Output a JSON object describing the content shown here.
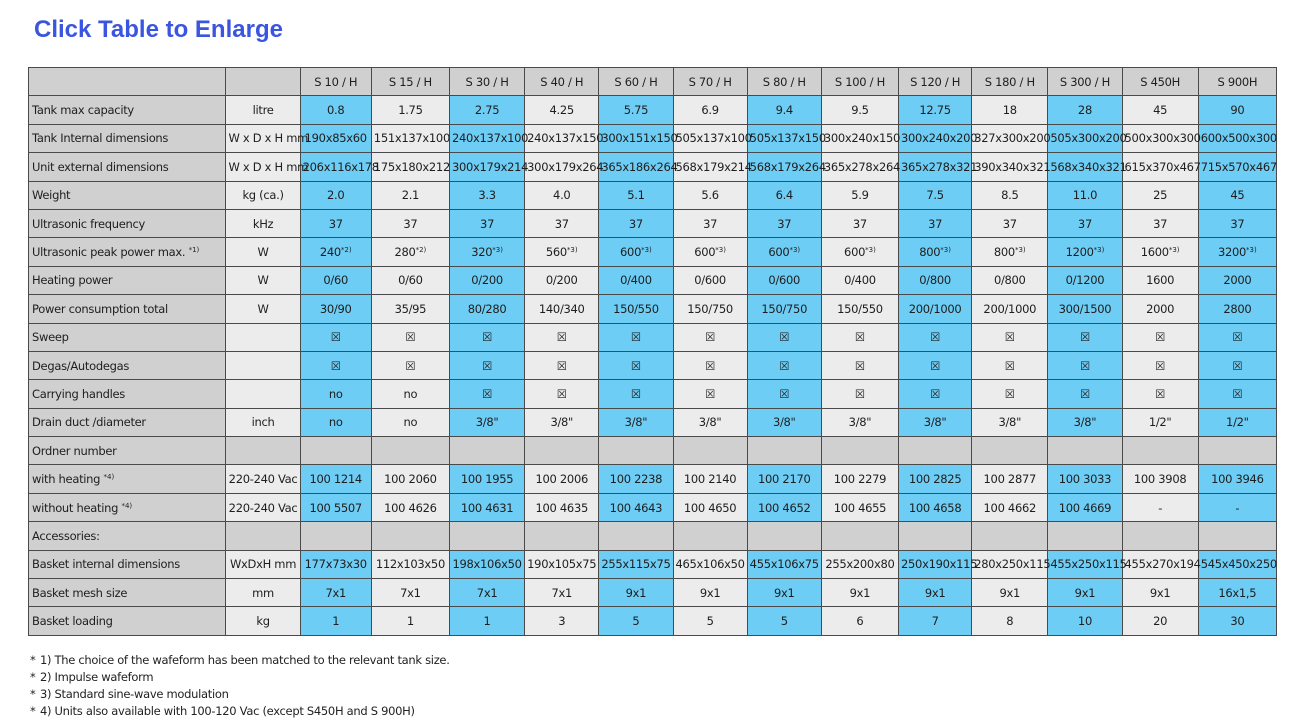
{
  "page_title": "Click Table to Enlarge",
  "columns": [
    "S 10 / H",
    "S 15 / H",
    "S 30 / H",
    "S 40 / H",
    "S 60 / H",
    "S 70 / H",
    "S 80 / H",
    "S 100 / H",
    "S 120 / H",
    "S 180 / H",
    "S 300 / H",
    "S 450H",
    "S 900H"
  ],
  "column_colors": [
    "b",
    "w",
    "b",
    "w",
    "b",
    "w",
    "b",
    "w",
    "b",
    "w",
    "b",
    "w",
    "b"
  ],
  "colors": {
    "blue_cell": "#6ecdf5",
    "grey_cell": "#ececec",
    "header_cell": "#d0d0d0",
    "title": "#3a55e0"
  },
  "rows": [
    {
      "label": "Tank max capacity",
      "unit": "litre",
      "values": [
        "0.8",
        "1.75",
        "2.75",
        "4.25",
        "5.75",
        "6.9",
        "9.4",
        "9.5",
        "12.75",
        "18",
        "28",
        "45",
        "90"
      ]
    },
    {
      "label": "Tank Internal dimensions",
      "unit": "W x D x H mm",
      "values": [
        "190x85x60",
        "151x137x100",
        "240x137x100",
        "240x137x150",
        "300x151x150",
        "505x137x100",
        "505x137x150",
        "300x240x150",
        "300x240x200",
        "327x300x200",
        "505x300x200",
        "500x300x300",
        "600x500x300"
      ]
    },
    {
      "label": "Unit external dimensions",
      "unit": "W x D x H mm",
      "values": [
        "206x116x178",
        "175x180x212",
        "300x179x214",
        "300x179x264",
        "365x186x264",
        "568x179x214",
        "568x179x264",
        "365x278x264",
        "365x278x321",
        "390x340x321",
        "568x340x321",
        "615x370x467",
        "715x570x467"
      ]
    },
    {
      "label": "Weight",
      "unit": "kg (ca.)",
      "values": [
        "2.0",
        "2.1",
        "3.3",
        "4.0",
        "5.1",
        "5.6",
        "6.4",
        "5.9",
        "7.5",
        "8.5",
        "11.0",
        "25",
        "45"
      ]
    },
    {
      "label": "Ultrasonic frequency",
      "unit": "kHz",
      "values": [
        "37",
        "37",
        "37",
        "37",
        "37",
        "37",
        "37",
        "37",
        "37",
        "37",
        "37",
        "37",
        "37"
      ]
    },
    {
      "label": "Ultrasonic peak power max.",
      "label_sup": "*1)",
      "unit": "W",
      "values": [
        "240",
        "280",
        "320",
        "560",
        "600",
        "600",
        "600",
        "600",
        "800",
        "800",
        "1200",
        "1600",
        "3200"
      ],
      "value_sups": [
        "*2)",
        "*2)",
        "*3)",
        "*3)",
        "*3)",
        "*3)",
        "*3)",
        "*3)",
        "*3)",
        "*3)",
        "*3)",
        "*3)",
        "*3)"
      ]
    },
    {
      "label": "Heating power",
      "unit": "W",
      "values": [
        "0/60",
        "0/60",
        "0/200",
        "0/200",
        "0/400",
        "0/600",
        "0/600",
        "0/400",
        "0/800",
        "0/800",
        "0/1200",
        "1600",
        "2000"
      ]
    },
    {
      "label": "Power consumption total",
      "unit": "W",
      "values": [
        "30/90",
        "35/95",
        "80/280",
        "140/340",
        "150/550",
        "150/750",
        "150/750",
        "150/550",
        "200/1000",
        "200/1000",
        "300/1500",
        "2000",
        "2800"
      ]
    },
    {
      "label": "Sweep",
      "unit": "",
      "values": [
        "☒",
        "☒",
        "☒",
        "☒",
        "☒",
        "☒",
        "☒",
        "☒",
        "☒",
        "☒",
        "☒",
        "☒",
        "☒"
      ]
    },
    {
      "label": "Degas/Autodegas",
      "unit": "",
      "values": [
        "☒",
        "☒",
        "☒",
        "☒",
        "☒",
        "☒",
        "☒",
        "☒",
        "☒",
        "☒",
        "☒",
        "☒",
        "☒"
      ]
    },
    {
      "label": "Carrying handles",
      "unit": "",
      "values": [
        "no",
        "no",
        "☒",
        "☒",
        "☒",
        "☒",
        "☒",
        "☒",
        "☒",
        "☒",
        "☒",
        "☒",
        "☒"
      ]
    },
    {
      "label": "Drain duct /diameter",
      "unit": "inch",
      "values": [
        "no",
        "no",
        "3/8\"",
        "3/8\"",
        "3/8\"",
        "3/8\"",
        "3/8\"",
        "3/8\"",
        "3/8\"",
        "3/8\"",
        "3/8\"",
        "1/2\"",
        "1/2\""
      ]
    },
    {
      "label": "Ordner number",
      "unit": "",
      "section": true,
      "values": [
        "",
        "",
        "",
        "",
        "",
        "",
        "",
        "",
        "",
        "",
        "",
        "",
        ""
      ]
    },
    {
      "label": "with heating",
      "label_sup": "*4)",
      "unit": "220-240 Vac",
      "values": [
        "100 1214",
        "100 2060",
        "100 1955",
        "100 2006",
        "100 2238",
        "100 2140",
        "100 2170",
        "100 2279",
        "100 2825",
        "100 2877",
        "100 3033",
        "100 3908",
        "100 3946"
      ]
    },
    {
      "label": "without heating",
      "label_sup": "*4)",
      "unit": "220-240 Vac",
      "values": [
        "100 5507",
        "100 4626",
        "100 4631",
        "100 4635",
        "100 4643",
        "100 4650",
        "100 4652",
        "100 4655",
        "100 4658",
        "100 4662",
        "100 4669",
        "-",
        "-"
      ]
    },
    {
      "label": "Accessories:",
      "unit": "",
      "section": true,
      "values": [
        "",
        "",
        "",
        "",
        "",
        "",
        "",
        "",
        "",
        "",
        "",
        "",
        ""
      ]
    },
    {
      "label": "Basket internal dimensions",
      "unit": "WxDxH mm",
      "values": [
        "177x73x30",
        "112x103x50",
        "198x106x50",
        "190x105x75",
        "255x115x75",
        "465x106x50",
        "455x106x75",
        "255x200x80",
        "250x190x115",
        "280x250x115",
        "455x250x115",
        "455x270x194",
        "545x450x250"
      ]
    },
    {
      "label": "Basket mesh size",
      "unit": "mm",
      "values": [
        "7x1",
        "7x1",
        "7x1",
        "7x1",
        "9x1",
        "9x1",
        "9x1",
        "9x1",
        "9x1",
        "9x1",
        "9x1",
        "9x1",
        "16x1,5"
      ]
    },
    {
      "label": "Basket loading",
      "unit": "kg",
      "values": [
        "1",
        "1",
        "1",
        "3",
        "5",
        "5",
        "5",
        "6",
        "7",
        "8",
        "10",
        "20",
        "30"
      ]
    }
  ],
  "footnotes": [
    {
      "star": "*",
      "text": "1) The choice of the wafeform has been matched to the relevant tank size."
    },
    {
      "star": "*",
      "text": "2) Impulse wafeform"
    },
    {
      "star": "*",
      "text": "3) Standard sine-wave modulation"
    },
    {
      "star": "*",
      "text": "4) Units also available with 100-120 Vac (except S450H and S 900H)"
    }
  ]
}
